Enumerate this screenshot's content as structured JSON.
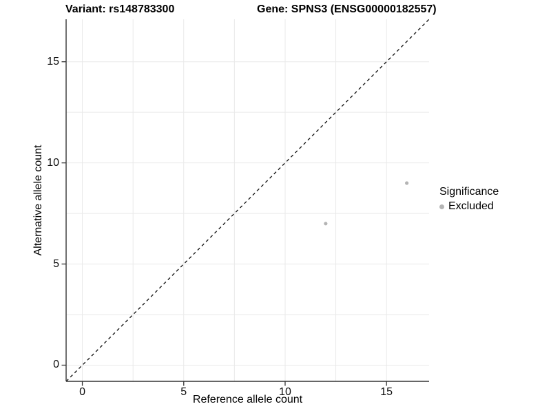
{
  "titles": {
    "variant": "Variant: rs148783300",
    "gene": "Gene: SPNS3 (ENSG00000182557)"
  },
  "axes": {
    "x_label": "Reference allele count",
    "y_label": "Alternative allele count"
  },
  "legend": {
    "title": "Significance",
    "items": [
      {
        "label": "Excluded",
        "color": "#b4b4b4",
        "marker": "dot"
      }
    ]
  },
  "chart_data": {
    "type": "scatter",
    "title": "Variant: rs148783300   Gene: SPNS3 (ENSG00000182557)",
    "xlabel": "Reference allele count",
    "ylabel": "Alternative allele count",
    "xlim": [
      -0.8,
      17.1
    ],
    "ylim": [
      -0.8,
      17.1
    ],
    "x_ticks": [
      0,
      5,
      10,
      15
    ],
    "y_ticks": [
      0,
      5,
      10,
      15
    ],
    "grid": {
      "show": true,
      "step": 2.5,
      "color": "#e9e9e9"
    },
    "reference_line": {
      "type": "identity",
      "slope": 1,
      "intercept": 0,
      "style": "dashed",
      "color": "#1a1a1a"
    },
    "series": [
      {
        "name": "Excluded",
        "color": "#b4b4b4",
        "points": [
          {
            "x": 12,
            "y": 7
          },
          {
            "x": 16,
            "y": 9
          }
        ]
      }
    ],
    "point_radius": 2.6,
    "legend_position": "right",
    "colors": {
      "axis_line": "#333333",
      "tick_mark": "#333333",
      "tick_text": "#0d0d0d",
      "background": "#ffffff"
    }
  }
}
